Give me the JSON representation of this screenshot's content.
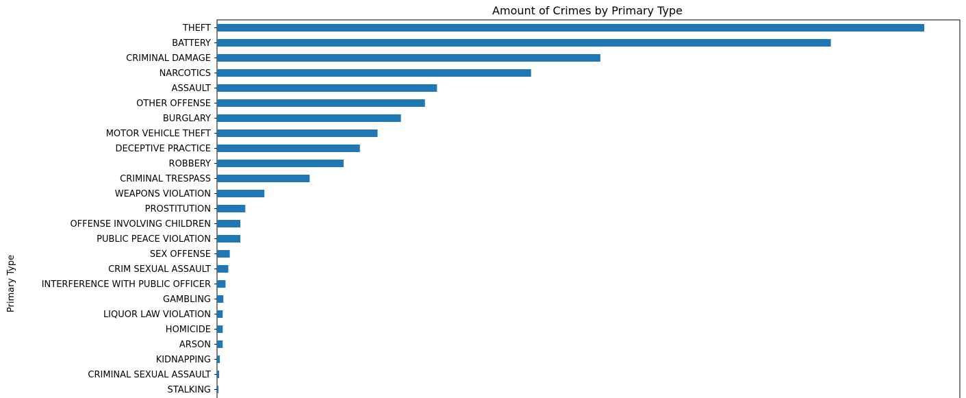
{
  "chart_data": {
    "type": "bar",
    "orientation": "horizontal",
    "title": "Amount of Crimes by Primary Type",
    "ylabel": "Primary Type",
    "xlabel": "",
    "grid": false,
    "bar_color": "#1f77b4",
    "categories": [
      "THEFT",
      "BATTERY",
      "CRIMINAL DAMAGE",
      "NARCOTICS",
      "ASSAULT",
      "OTHER OFFENSE",
      "BURGLARY",
      "MOTOR VEHICLE THEFT",
      "DECEPTIVE PRACTICE",
      "ROBBERY",
      "CRIMINAL TRESPASS",
      "WEAPONS VIOLATION",
      "PROSTITUTION",
      "OFFENSE INVOLVING CHILDREN",
      "PUBLIC PEACE VIOLATION",
      "SEX OFFENSE",
      "CRIM SEXUAL ASSAULT",
      "INTERFERENCE WITH PUBLIC OFFICER",
      "GAMBLING",
      "LIQUOR LAW VIOLATION",
      "HOMICIDE",
      "ARSON",
      "KIDNAPPING",
      "CRIMINAL SEXUAL ASSAULT",
      "STALKING"
    ],
    "values": [
      1000,
      868,
      542,
      444,
      311,
      294,
      260,
      227,
      202,
      179,
      131,
      67,
      40,
      33,
      33,
      18,
      16,
      12,
      9,
      8,
      8,
      8,
      4,
      3,
      2
    ],
    "xlim": [
      0,
      1050
    ]
  }
}
